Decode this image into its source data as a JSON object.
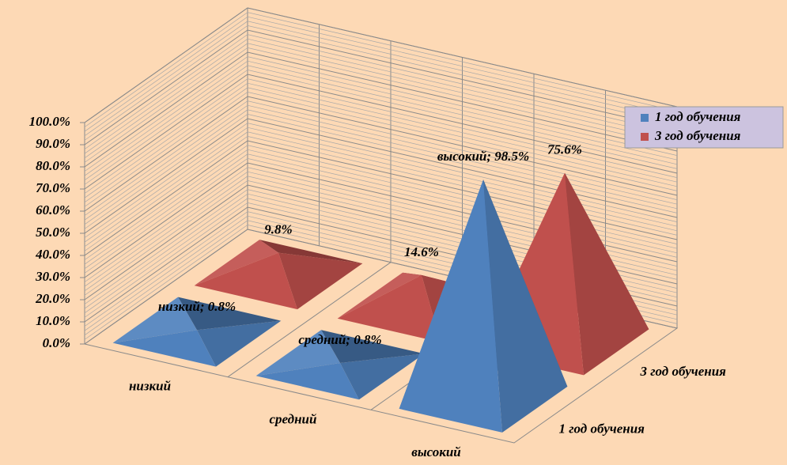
{
  "chart_data": {
    "type": "pyramid3d",
    "categories": [
      "низкий",
      "средний",
      "высокий"
    ],
    "series": [
      {
        "name": "1 год обучения",
        "color": "#4f81bd",
        "values": [
          0.8,
          0.8,
          98.5
        ],
        "value_labels": [
          "низкий; 0.8%",
          "средний; 0.8%",
          "высокий; 98.5%"
        ]
      },
      {
        "name": "3 год обучения",
        "color": "#c0504d",
        "values": [
          9.8,
          14.6,
          75.6
        ],
        "value_labels": [
          "9.8%",
          "14.6%",
          "75.6%"
        ]
      }
    ],
    "ylim": [
      0,
      100
    ],
    "yticks": [
      {
        "value": 0,
        "label": "0.0%"
      },
      {
        "value": 10,
        "label": "10.0%"
      },
      {
        "value": 20,
        "label": "20.0%"
      },
      {
        "value": 30,
        "label": "30.0%"
      },
      {
        "value": 40,
        "label": "40.0%"
      },
      {
        "value": 50,
        "label": "50.0%"
      },
      {
        "value": 60,
        "label": "60.0%"
      },
      {
        "value": 70,
        "label": "70.0%"
      },
      {
        "value": 80,
        "label": "80.0%"
      },
      {
        "value": 90,
        "label": "90.0%"
      },
      {
        "value": 100,
        "label": "100.0%"
      }
    ],
    "grid": true,
    "legend": "right"
  }
}
